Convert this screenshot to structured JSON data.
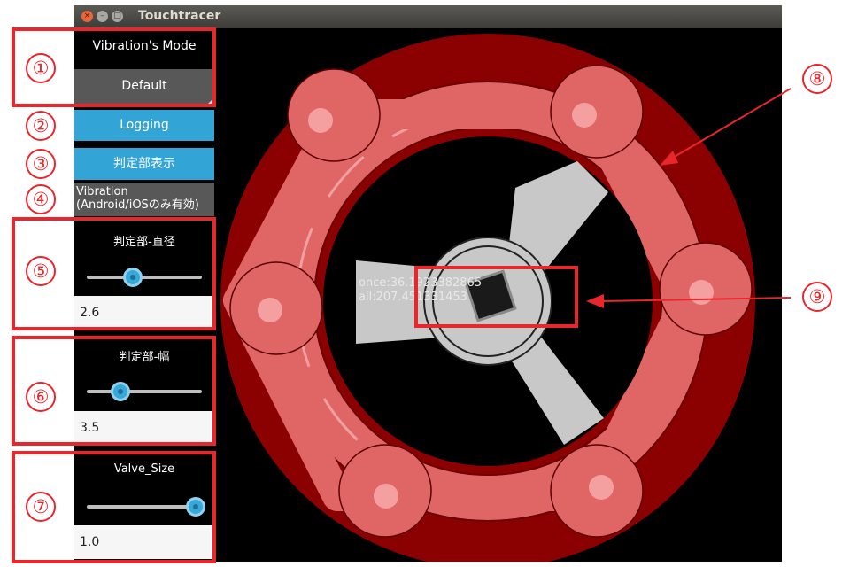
{
  "window": {
    "title": "Touchtracer",
    "close_glyph": "×",
    "min_glyph": "–",
    "max_glyph": "□"
  },
  "panel": {
    "vibration_mode_label": "Vibration's Mode",
    "mode_value": "Default",
    "logging_label": "Logging",
    "show_judge_label": "判定部表示",
    "vibration_line1": "Vibration",
    "vibration_line2": "(Android/iOSのみ有効)",
    "sliders": [
      {
        "label": "判定部-直径",
        "value": "2.6",
        "level": 0.39
      },
      {
        "label": "判定部-幅",
        "value": "3.5",
        "level": 0.27
      },
      {
        "label": "Valve_Size",
        "value": "1.0",
        "level": 1.0
      }
    ]
  },
  "readout": {
    "once": "once:36.1923382865",
    "all": "all:207.451331453"
  },
  "annotations": [
    "①",
    "②",
    "③",
    "④",
    "⑤",
    "⑥",
    "⑦",
    "⑧",
    "⑨"
  ],
  "colors": {
    "accent_blue": "#33a4d6",
    "annotation_red": "#e8262c",
    "wheel_dark_red": "#8b0000",
    "wheel_pink": "#e06666",
    "spoke_gray": "#c8c8c8"
  }
}
